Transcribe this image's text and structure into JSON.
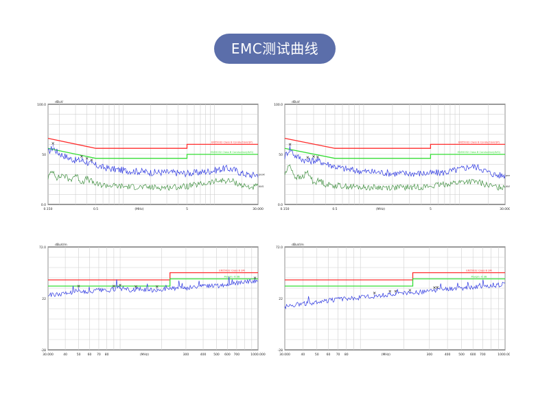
{
  "header": {
    "title": "EMC测试曲线"
  },
  "colors": {
    "title_bg": "#5b6eaa",
    "limit_red": "#ff2a2a",
    "limit_green": "#33dd33",
    "trace_blue": "#2a35e0",
    "trace_green": "#3f8f3f",
    "grid": "#cfcfcf",
    "frame": "#333333"
  },
  "chart_data": [
    {
      "type": "line",
      "scale": "log-x",
      "ymax_label": "100.0",
      "ymid_label": "50",
      "ymin_label": "0.0",
      "yunit": "dBuV",
      "ylim": [
        0,
        100
      ],
      "xlim": [
        0.15,
        30
      ],
      "x_tick_labels": [
        {
          "x": 0.15,
          "label": "0.150"
        },
        {
          "x": 0.5,
          "label": "0.5"
        },
        {
          "x": 1.5,
          "label": "(MHz)"
        },
        {
          "x": 5,
          "label": "5"
        },
        {
          "x": 30,
          "label": "30.000"
        }
      ],
      "grid_x": [
        0.15,
        0.2,
        0.3,
        0.4,
        0.5,
        0.6,
        0.7,
        0.8,
        0.9,
        1,
        2,
        3,
        4,
        5,
        6,
        7,
        8,
        9,
        10,
        20,
        30
      ],
      "grid_y": [
        10,
        20,
        30,
        40,
        50,
        60,
        70,
        80,
        90
      ],
      "limits": [
        {
          "name": "EN55032 Class B Conduction(QP)",
          "color": "#ff2a2a",
          "points": [
            [
              0.15,
              66
            ],
            [
              0.5,
              56
            ],
            [
              5,
              56
            ],
            [
              5,
              60
            ],
            [
              30,
              60
            ]
          ]
        },
        {
          "name": "EN55032 Class B Conduction(AVG)",
          "color": "#33dd33",
          "points": [
            [
              0.15,
              56
            ],
            [
              0.5,
              46
            ],
            [
              5,
              46
            ],
            [
              5,
              50
            ],
            [
              30,
              50
            ]
          ]
        }
      ],
      "series": [
        {
          "name": "peak",
          "color": "#2a35e0",
          "points": [
            [
              0.15,
              52
            ],
            [
              0.17,
              57
            ],
            [
              0.19,
              52
            ],
            [
              0.22,
              49
            ],
            [
              0.26,
              46
            ],
            [
              0.3,
              44
            ],
            [
              0.35,
              44
            ],
            [
              0.4,
              42
            ],
            [
              0.5,
              39
            ],
            [
              0.6,
              37
            ],
            [
              0.8,
              35
            ],
            [
              1,
              34
            ],
            [
              1.5,
              33
            ],
            [
              2,
              32
            ],
            [
              3,
              32
            ],
            [
              5,
              31
            ],
            [
              7,
              32
            ],
            [
              10,
              34
            ],
            [
              13,
              36
            ],
            [
              16,
              35
            ],
            [
              20,
              31
            ],
            [
              25,
              29
            ],
            [
              30,
              30
            ]
          ]
        },
        {
          "name": "AVG",
          "color": "#3f8f3f",
          "points": [
            [
              0.15,
              27
            ],
            [
              0.17,
              34
            ],
            [
              0.19,
              26
            ],
            [
              0.22,
              30
            ],
            [
              0.26,
              24
            ],
            [
              0.3,
              30
            ],
            [
              0.35,
              22
            ],
            [
              0.4,
              26
            ],
            [
              0.5,
              20
            ],
            [
              0.7,
              19
            ],
            [
              1,
              18
            ],
            [
              2,
              17
            ],
            [
              3,
              17
            ],
            [
              5,
              18
            ],
            [
              8,
              21
            ],
            [
              12,
              24
            ],
            [
              16,
              23
            ],
            [
              20,
              19
            ],
            [
              25,
              17
            ],
            [
              30,
              18
            ]
          ]
        }
      ],
      "markers": [
        0.17,
        0.35,
        0.4,
        0.45
      ]
    },
    {
      "type": "line",
      "scale": "log-x",
      "ymax_label": "100.0",
      "ymid_label": "50",
      "ymin_label": "0.0",
      "yunit": "dBuV",
      "ylim": [
        0,
        100
      ],
      "xlim": [
        0.15,
        30
      ],
      "x_tick_labels": [
        {
          "x": 0.15,
          "label": "0.150"
        },
        {
          "x": 0.5,
          "label": "0.5"
        },
        {
          "x": 1.5,
          "label": "(MHz)"
        },
        {
          "x": 5,
          "label": "5"
        },
        {
          "x": 30,
          "label": "30.000"
        }
      ],
      "grid_x": [
        0.15,
        0.2,
        0.3,
        0.4,
        0.5,
        0.6,
        0.7,
        0.8,
        0.9,
        1,
        2,
        3,
        4,
        5,
        6,
        7,
        8,
        9,
        10,
        20,
        30
      ],
      "grid_y": [
        10,
        20,
        30,
        40,
        50,
        60,
        70,
        80,
        90
      ],
      "limits": [
        {
          "name": "EN55032 Class B Conduction(QP)",
          "color": "#ff2a2a",
          "points": [
            [
              0.15,
              66
            ],
            [
              0.5,
              56
            ],
            [
              5,
              56
            ],
            [
              5,
              60
            ],
            [
              30,
              60
            ]
          ]
        },
        {
          "name": "EN55032 Class B Conduction(AVG)",
          "color": "#33dd33",
          "points": [
            [
              0.15,
              56
            ],
            [
              0.5,
              46
            ],
            [
              5,
              46
            ],
            [
              5,
              50
            ],
            [
              30,
              50
            ]
          ]
        }
      ],
      "series": [
        {
          "name": "peak",
          "color": "#2a35e0",
          "points": [
            [
              0.15,
              48
            ],
            [
              0.17,
              56
            ],
            [
              0.19,
              49
            ],
            [
              0.22,
              46
            ],
            [
              0.26,
              43
            ],
            [
              0.3,
              44
            ],
            [
              0.35,
              43
            ],
            [
              0.4,
              41
            ],
            [
              0.5,
              38
            ],
            [
              0.6,
              36
            ],
            [
              0.8,
              34
            ],
            [
              1,
              33
            ],
            [
              1.5,
              32
            ],
            [
              2,
              31
            ],
            [
              3,
              31
            ],
            [
              5,
              31
            ],
            [
              7,
              32
            ],
            [
              10,
              35
            ],
            [
              13,
              38
            ],
            [
              16,
              37
            ],
            [
              20,
              32
            ],
            [
              25,
              29
            ],
            [
              30,
              29
            ]
          ]
        },
        {
          "name": "AVG",
          "color": "#3f8f3f",
          "points": [
            [
              0.15,
              30
            ],
            [
              0.17,
              40
            ],
            [
              0.19,
              28
            ],
            [
              0.22,
              26
            ],
            [
              0.26,
              32
            ],
            [
              0.3,
              22
            ],
            [
              0.35,
              24
            ],
            [
              0.4,
              20
            ],
            [
              0.5,
              19
            ],
            [
              0.7,
              18
            ],
            [
              1,
              17
            ],
            [
              2,
              17
            ],
            [
              3,
              17
            ],
            [
              5,
              18
            ],
            [
              8,
              21
            ],
            [
              12,
              23
            ],
            [
              16,
              22
            ],
            [
              20,
              19
            ],
            [
              25,
              17
            ],
            [
              30,
              18
            ]
          ]
        }
      ],
      "markers": [
        0.17,
        0.26,
        0.3,
        0.33
      ]
    },
    {
      "type": "line",
      "scale": "log-x",
      "ymax_label": "72.0",
      "ymid_label": "22",
      "ymin_label": "-28",
      "yunit": "dBuV/m",
      "ylim": [
        -28,
        72
      ],
      "xlim": [
        30,
        1000
      ],
      "x_tick_labels": [
        {
          "x": 30,
          "label": "30.000"
        },
        {
          "x": 40,
          "label": "40"
        },
        {
          "x": 50,
          "label": "50"
        },
        {
          "x": 60,
          "label": "60"
        },
        {
          "x": 70,
          "label": "70"
        },
        {
          "x": 80,
          "label": "80"
        },
        {
          "x": 150,
          "label": "(MHz)"
        },
        {
          "x": 300,
          "label": "300"
        },
        {
          "x": 400,
          "label": "400"
        },
        {
          "x": 500,
          "label": "500"
        },
        {
          "x": 600,
          "label": "600"
        },
        {
          "x": 700,
          "label": "700"
        },
        {
          "x": 1000,
          "label": "1000.000"
        }
      ],
      "grid_x": [
        30,
        40,
        50,
        60,
        70,
        80,
        90,
        100,
        200,
        300,
        400,
        500,
        600,
        700,
        800,
        900,
        1000
      ],
      "grid_y": [
        -18,
        -8,
        2,
        12,
        22,
        32,
        42,
        52,
        62
      ],
      "limits": [
        {
          "name": "EN55032 Class B 3M",
          "color": "#ff2a2a",
          "points": [
            [
              30,
              40
            ],
            [
              230,
              40
            ],
            [
              230,
              47
            ],
            [
              1000,
              47
            ]
          ]
        },
        {
          "name": "Margin -6 dB",
          "color": "#33dd33",
          "points": [
            [
              30,
              34
            ],
            [
              230,
              34
            ],
            [
              230,
              41
            ],
            [
              1000,
              41
            ]
          ]
        }
      ],
      "series": [
        {
          "name": "",
          "color": "#2a35e0",
          "points": [
            [
              30,
              25
            ],
            [
              35,
              26
            ],
            [
              40,
              27
            ],
            [
              45,
              28
            ],
            [
              50,
              31
            ],
            [
              55,
              28
            ],
            [
              60,
              28
            ],
            [
              70,
              30
            ],
            [
              80,
              29
            ],
            [
              90,
              31
            ],
            [
              100,
              32
            ],
            [
              120,
              30
            ],
            [
              140,
              31
            ],
            [
              170,
              30
            ],
            [
              200,
              31
            ],
            [
              230,
              31
            ],
            [
              260,
              32
            ],
            [
              300,
              32
            ],
            [
              400,
              34
            ],
            [
              500,
              34
            ],
            [
              600,
              35
            ],
            [
              700,
              37
            ],
            [
              800,
              38
            ],
            [
              900,
              39
            ],
            [
              1000,
              39
            ]
          ]
        }
      ],
      "markers": [
        50,
        90,
        100,
        130,
        185,
        950
      ]
    },
    {
      "type": "line",
      "scale": "log-x",
      "ymax_label": "72.0",
      "ymid_label": "22",
      "ymin_label": "-28",
      "yunit": "dBuV/m",
      "ylim": [
        -28,
        72
      ],
      "xlim": [
        30,
        1000
      ],
      "x_tick_labels": [
        {
          "x": 30,
          "label": "30.000"
        },
        {
          "x": 40,
          "label": "40"
        },
        {
          "x": 50,
          "label": "50"
        },
        {
          "x": 60,
          "label": "60"
        },
        {
          "x": 70,
          "label": "70"
        },
        {
          "x": 80,
          "label": "80"
        },
        {
          "x": 150,
          "label": "(MHz)"
        },
        {
          "x": 300,
          "label": "300"
        },
        {
          "x": 400,
          "label": "400"
        },
        {
          "x": 500,
          "label": "500"
        },
        {
          "x": 600,
          "label": "600"
        },
        {
          "x": 700,
          "label": "700"
        },
        {
          "x": 1000,
          "label": "1000.000"
        }
      ],
      "grid_x": [
        30,
        40,
        50,
        60,
        70,
        80,
        90,
        100,
        200,
        300,
        400,
        500,
        600,
        700,
        800,
        900,
        1000
      ],
      "grid_y": [
        -18,
        -8,
        2,
        12,
        22,
        32,
        42,
        52,
        62
      ],
      "limits": [
        {
          "name": "EN55032 Class B 3M",
          "color": "#ff2a2a",
          "points": [
            [
              30,
              40
            ],
            [
              230,
              40
            ],
            [
              230,
              47
            ],
            [
              1000,
              47
            ]
          ]
        },
        {
          "name": "Margin -6 dB",
          "color": "#33dd33",
          "points": [
            [
              30,
              34
            ],
            [
              230,
              34
            ],
            [
              230,
              41
            ],
            [
              1000,
              41
            ]
          ]
        }
      ],
      "series": [
        {
          "name": "",
          "color": "#2a35e0",
          "points": [
            [
              30,
              14
            ],
            [
              35,
              16
            ],
            [
              40,
              17
            ],
            [
              50,
              18
            ],
            [
              60,
              20
            ],
            [
              70,
              21
            ],
            [
              80,
              22
            ],
            [
              90,
              22
            ],
            [
              100,
              23
            ],
            [
              120,
              24
            ],
            [
              140,
              25
            ],
            [
              160,
              26
            ],
            [
              180,
              26
            ],
            [
              200,
              27
            ],
            [
              230,
              27
            ],
            [
              260,
              28
            ],
            [
              300,
              29
            ],
            [
              350,
              30
            ],
            [
              400,
              31
            ],
            [
              500,
              32
            ],
            [
              600,
              33
            ],
            [
              700,
              33
            ],
            [
              800,
              34
            ],
            [
              900,
              35
            ],
            [
              1000,
              36
            ]
          ]
        }
      ],
      "markers": [
        125,
        160,
        175,
        220,
        325,
        340
      ]
    }
  ]
}
